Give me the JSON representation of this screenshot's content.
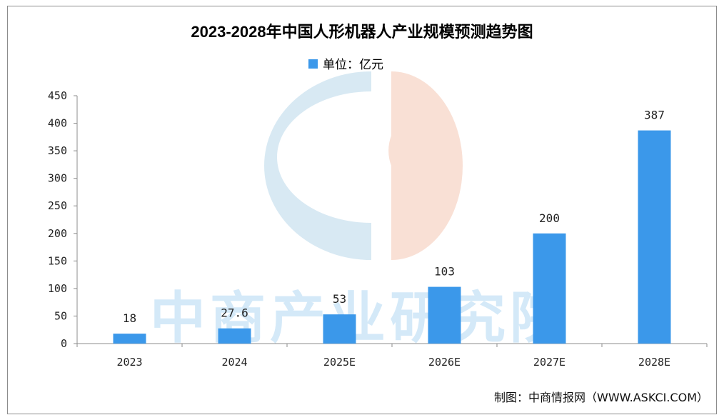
{
  "chart_data": {
    "type": "bar",
    "title": "2023-2028年中国人形机器人产业规模预测趋势图",
    "legend": {
      "label": "单位：亿元",
      "placement": "top-center"
    },
    "categories": [
      "2023",
      "2024",
      "2025E",
      "2026E",
      "2027E",
      "2028E"
    ],
    "series": [
      {
        "values": [
          18,
          27.6,
          53,
          103,
          200,
          387
        ]
      }
    ],
    "data_labels": [
      "18",
      "27.6",
      "53",
      "103",
      "200",
      "387"
    ],
    "ylim": [
      0,
      450
    ],
    "yticks": [
      0,
      50,
      100,
      150,
      200,
      250,
      300,
      350,
      400,
      450
    ],
    "grid": false,
    "colors": {
      "bar": "#3b98ea"
    }
  },
  "source_note": "制图：中商情报网（WWW.ASKCI.COM）",
  "watermark": {
    "text": "中商产业研究院",
    "logo": "askci-logo"
  }
}
